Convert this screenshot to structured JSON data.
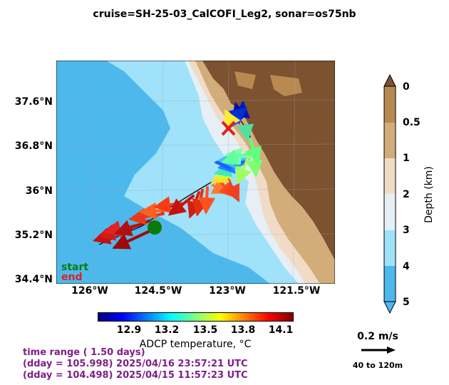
{
  "title": "cruise=SH-25-03_CalCOFI_Leg2,   sonar=os75nb",
  "map": {
    "lat_ticks": [
      "37.6°N",
      "36.8°N",
      "36°N",
      "35.2°N",
      "34.4°N"
    ],
    "lon_ticks": [
      "126°W",
      "124.5°W",
      "123°W",
      "121.5°W"
    ],
    "start_label": "start",
    "end_label": "end",
    "colors": {
      "deep": "#4db8ec",
      "mid": "#9fe2fa",
      "shelf": "#e6eff5",
      "slope": "#f0dcc6",
      "land": "#7c5230",
      "start": "#0a7a0a",
      "end": "#e02020"
    }
  },
  "depth_colorbar": {
    "label": "Depth (km)",
    "ticks": [
      "0",
      "0.5",
      "1",
      "2",
      "3",
      "4",
      "5"
    ]
  },
  "temp_colorbar": {
    "label": "ADCP temperature, °C",
    "ticks": [
      "12.9",
      "13.2",
      "13.5",
      "13.8",
      "14.1"
    ]
  },
  "scale": {
    "label": "0.2 m/s",
    "depth_range": "40 to 120m"
  },
  "info": {
    "line1": "time range ( 1.50 days)",
    "line2": "(dday = 105.998) 2025/04/16 23:57:21 UTC",
    "line3": "(dday = 104.498) 2025/04/15 11:57:23 UTC"
  }
}
